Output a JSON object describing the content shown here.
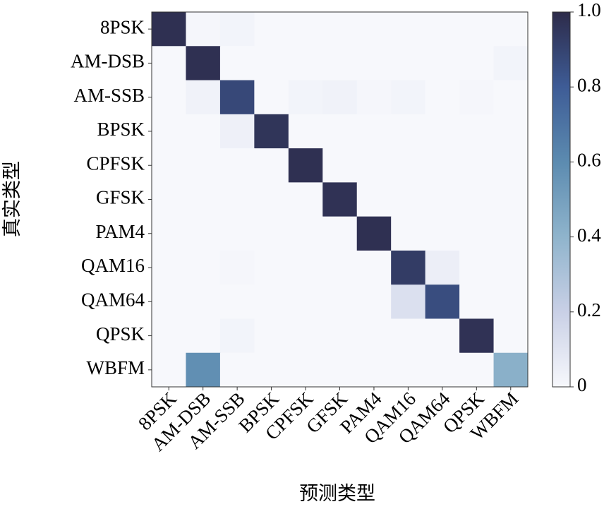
{
  "chart_data": {
    "type": "heatmap",
    "xlabel": "预测类型",
    "ylabel": "真实类型",
    "x": [
      "8PSK",
      "AM-DSB",
      "AM-SSB",
      "BPSK",
      "CPFSK",
      "GFSK",
      "PAM4",
      "QAM16",
      "QAM64",
      "QPSK",
      "WBFM"
    ],
    "y": [
      "8PSK",
      "AM-DSB",
      "AM-SSB",
      "BPSK",
      "CPFSK",
      "GFSK",
      "PAM4",
      "QAM16",
      "QAM64",
      "QPSK",
      "WBFM"
    ],
    "values": [
      [
        0.98,
        0.01,
        0.02,
        0,
        0,
        0,
        0,
        0,
        0,
        0,
        0
      ],
      [
        0,
        0.98,
        0,
        0,
        0,
        0,
        0,
        0,
        0,
        0,
        0.02
      ],
      [
        0,
        0.03,
        0.88,
        0,
        0.02,
        0.03,
        0.01,
        0.02,
        0,
        0.01,
        0
      ],
      [
        0,
        0,
        0.04,
        0.96,
        0,
        0,
        0,
        0,
        0,
        0,
        0
      ],
      [
        0,
        0,
        0,
        0,
        0.98,
        0,
        0,
        0,
        0,
        0,
        0
      ],
      [
        0,
        0,
        0,
        0,
        0,
        0.97,
        0,
        0,
        0,
        0,
        0
      ],
      [
        0,
        0,
        0,
        0,
        0,
        0,
        0.98,
        0,
        0,
        0,
        0
      ],
      [
        0,
        0,
        0.01,
        0,
        0,
        0,
        0,
        0.93,
        0.05,
        0,
        0
      ],
      [
        0,
        0,
        0,
        0,
        0,
        0,
        0,
        0.12,
        0.86,
        0,
        0
      ],
      [
        0,
        0,
        0.02,
        0,
        0,
        0,
        0,
        0,
        0,
        0.97,
        0
      ],
      [
        0,
        0.58,
        0,
        0,
        0,
        0,
        0,
        0,
        0,
        0,
        0.42
      ]
    ],
    "clim": [
      0,
      1
    ],
    "colorscale": [
      "#f7f8fc",
      "#c9d0e6",
      "#8fb4cc",
      "#5c8bb0",
      "#3e5c96",
      "#2d2b4a"
    ],
    "cticks": [
      0,
      0.2,
      0.4,
      0.6,
      0.8,
      {
        "value": 1,
        "label": "1.0"
      }
    ]
  }
}
